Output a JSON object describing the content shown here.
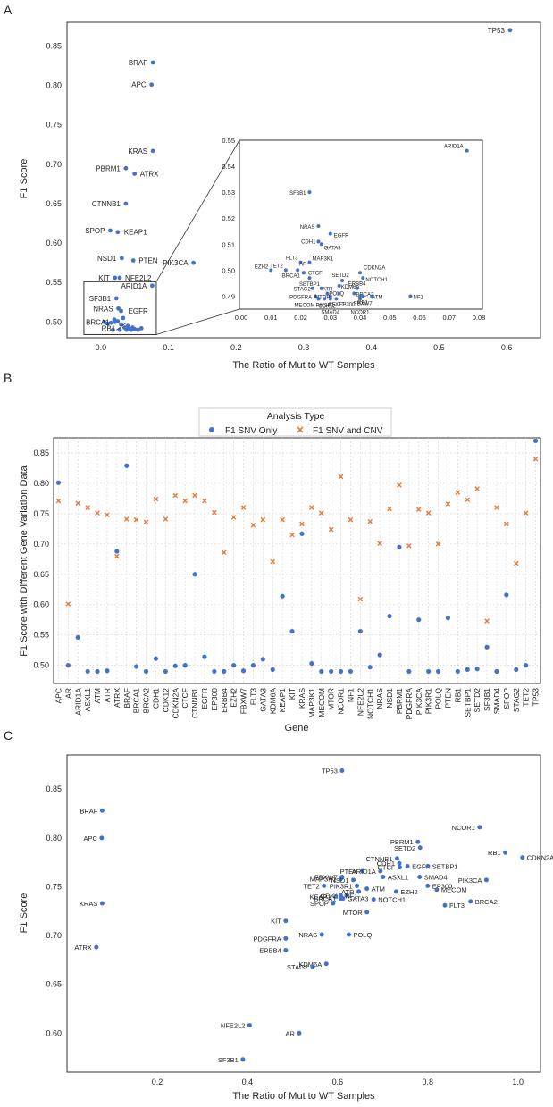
{
  "colors": {
    "blue": "#4472c4",
    "orange": "#e07b39",
    "grid": "#d9d9d9",
    "frame": "#333333"
  },
  "chart_data": [
    {
      "panel": "A",
      "type": "scatter",
      "xlabel": "The Ratio of Mut to WT Samples",
      "ylabel": "F1 Score",
      "xlim": [
        -0.05,
        0.65
      ],
      "ylim": [
        0.48,
        0.88
      ],
      "xticks": [
        "0.0",
        "0.1",
        "0.2",
        "0.3",
        "0.4",
        "0.5",
        "0.6"
      ],
      "yticks": [
        "0.50",
        "0.55",
        "0.60",
        "0.65",
        "0.70",
        "0.75",
        "0.80",
        "0.85"
      ],
      "grid": false,
      "points": [
        {
          "label": "TP53",
          "x": 0.605,
          "y": 0.87
        },
        {
          "label": "BRAF",
          "x": 0.077,
          "y": 0.829
        },
        {
          "label": "APC",
          "x": 0.075,
          "y": 0.801
        },
        {
          "label": "KRAS",
          "x": 0.077,
          "y": 0.717
        },
        {
          "label": "PBRM1",
          "x": 0.037,
          "y": 0.695
        },
        {
          "label": "ATRX",
          "x": 0.05,
          "y": 0.688
        },
        {
          "label": "CTNNB1",
          "x": 0.037,
          "y": 0.65
        },
        {
          "label": "SPOP",
          "x": 0.014,
          "y": 0.616
        },
        {
          "label": "KEAP1",
          "x": 0.025,
          "y": 0.614
        },
        {
          "label": "NSD1",
          "x": 0.031,
          "y": 0.581
        },
        {
          "label": "PTEN",
          "x": 0.048,
          "y": 0.578
        },
        {
          "label": "PIK3CA",
          "x": 0.137,
          "y": 0.575
        },
        {
          "label": "KIT",
          "x": 0.021,
          "y": 0.556
        },
        {
          "label": "NFE2L2",
          "x": 0.028,
          "y": 0.556
        },
        {
          "label": "ARID1A",
          "x": 0.076,
          "y": 0.546
        },
        {
          "label": "SF3B1",
          "x": 0.023,
          "y": 0.53
        },
        {
          "label": "NRAS",
          "x": 0.026,
          "y": 0.517
        },
        {
          "label": "EGFR",
          "x": 0.03,
          "y": 0.514
        },
        {
          "label": "BRCA1",
          "x": 0.021,
          "y": 0.5
        },
        {
          "label": "RB1",
          "x": 0.04,
          "y": 0.492
        }
      ],
      "cluster": [
        [
          0.005,
          0.5
        ],
        [
          0.01,
          0.498
        ],
        [
          0.015,
          0.499
        ],
        [
          0.02,
          0.503
        ],
        [
          0.025,
          0.501
        ],
        [
          0.03,
          0.497
        ],
        [
          0.035,
          0.493
        ],
        [
          0.04,
          0.495
        ],
        [
          0.045,
          0.49
        ],
        [
          0.05,
          0.491
        ],
        [
          0.055,
          0.49
        ],
        [
          0.06,
          0.492
        ],
        [
          0.028,
          0.49
        ],
        [
          0.033,
          0.505
        ],
        [
          0.042,
          0.491
        ],
        [
          0.018,
          0.49
        ],
        [
          0.038,
          0.49
        ],
        [
          0.047,
          0.493
        ]
      ],
      "inset": {
        "xlim": [
          0.0,
          0.08
        ],
        "ylim": [
          0.485,
          0.55
        ],
        "xticks": [
          "0.00",
          "0.01",
          "0.02",
          "0.03",
          "0.04",
          "0.05",
          "0.06",
          "0.07",
          "0.08"
        ],
        "yticks": [
          "0.49",
          "0.50",
          "0.51",
          "0.52",
          "0.53",
          "0.54",
          "0.55"
        ],
        "points": [
          {
            "label": "ARID1A",
            "x": 0.076,
            "y": 0.546
          },
          {
            "label": "SF3B1",
            "x": 0.023,
            "y": 0.53
          },
          {
            "label": "NRAS",
            "x": 0.026,
            "y": 0.517
          },
          {
            "label": "EGFR",
            "x": 0.03,
            "y": 0.514
          },
          {
            "label": "CDH1",
            "x": 0.026,
            "y": 0.511
          },
          {
            "label": "GATA3",
            "x": 0.027,
            "y": 0.51
          },
          {
            "label": "FLT3",
            "x": 0.02,
            "y": 0.503
          },
          {
            "label": "MAP3K1",
            "x": 0.023,
            "y": 0.503
          },
          {
            "label": "EZH2",
            "x": 0.01,
            "y": 0.5
          },
          {
            "label": "TET2",
            "x": 0.015,
            "y": 0.5
          },
          {
            "label": "AR",
            "x": 0.019,
            "y": 0.5
          },
          {
            "label": "CTCF",
            "x": 0.021,
            "y": 0.499
          },
          {
            "label": "CDKN2A",
            "x": 0.04,
            "y": 0.499
          },
          {
            "label": "BRCA1",
            "x": 0.021,
            "y": 0.499
          },
          {
            "label": "SETBP1",
            "x": 0.023,
            "y": 0.497
          },
          {
            "label": "NOTCH1",
            "x": 0.041,
            "y": 0.497
          },
          {
            "label": "SETD2",
            "x": 0.034,
            "y": 0.496
          },
          {
            "label": "STAG2",
            "x": 0.024,
            "y": 0.493
          },
          {
            "label": "ATR",
            "x": 0.027,
            "y": 0.493
          },
          {
            "label": "KDM6A",
            "x": 0.033,
            "y": 0.494
          },
          {
            "label": "ERBB4",
            "x": 0.039,
            "y": 0.493
          },
          {
            "label": "POLQ",
            "x": 0.029,
            "y": 0.491
          },
          {
            "label": "BRCA2",
            "x": 0.038,
            "y": 0.491
          },
          {
            "label": "PDGFRA",
            "x": 0.025,
            "y": 0.49
          },
          {
            "label": "MTOR",
            "x": 0.03,
            "y": 0.49
          },
          {
            "label": "CDK12",
            "x": 0.033,
            "y": 0.491
          },
          {
            "label": "ATM",
            "x": 0.044,
            "y": 0.49
          },
          {
            "label": "NF1",
            "x": 0.057,
            "y": 0.49
          },
          {
            "label": "FBXW7",
            "x": 0.041,
            "y": 0.49
          },
          {
            "label": "RB1",
            "x": 0.04,
            "y": 0.49
          },
          {
            "label": "MECOM",
            "x": 0.026,
            "y": 0.489
          },
          {
            "label": "PIK3R1",
            "x": 0.026,
            "y": 0.489
          },
          {
            "label": "ASXL1",
            "x": 0.028,
            "y": 0.489
          },
          {
            "label": "EP300",
            "x": 0.032,
            "y": 0.489
          },
          {
            "label": "NCOR1",
            "x": 0.04,
            "y": 0.489
          },
          {
            "label": "SMAD4",
            "x": 0.03,
            "y": 0.489
          }
        ]
      }
    },
    {
      "panel": "B",
      "type": "scatter",
      "title": "Analysis Type",
      "xlabel": "Gene",
      "ylabel": "F1 Score with Different Gene Variation Data",
      "ylim": [
        0.47,
        0.875
      ],
      "yticks": [
        "0.50",
        "0.55",
        "0.60",
        "0.65",
        "0.70",
        "0.75",
        "0.80",
        "0.85"
      ],
      "grid": true,
      "legend": "top-center",
      "categories": [
        "APC",
        "AR",
        "ARID1A",
        "ASXL1",
        "ATM",
        "ATR",
        "ATRX",
        "BRAF",
        "BRCA1",
        "BRCA2",
        "CDH1",
        "CDK12",
        "CDKN2A",
        "CTCF",
        "CTNNB1",
        "EGFR",
        "EP300",
        "ERBB4",
        "EZH2",
        "FBXW7",
        "FLT3",
        "GATA3",
        "KDM6A",
        "KEAP1",
        "KIT",
        "KRAS",
        "MAP3K1",
        "MECOM",
        "MTOR",
        "NCOR1",
        "NF1",
        "NFE2L2",
        "NOTCH1",
        "NRAS",
        "NSD1",
        "PBRM1",
        "PDGFRA",
        "PIK3CA",
        "PIK3R1",
        "POLQ",
        "PTEN",
        "RB1",
        "SETBP1",
        "SETD2",
        "SF3B1",
        "SMAD4",
        "SPOP",
        "STAG2",
        "TET2",
        "TP53"
      ],
      "series": [
        {
          "name": "F1 SNV Only",
          "marker": "circle",
          "values": [
            0.801,
            0.5,
            0.546,
            0.49,
            0.49,
            0.491,
            0.688,
            0.829,
            0.498,
            0.49,
            0.511,
            0.49,
            0.499,
            0.5,
            0.65,
            0.514,
            0.49,
            0.49,
            0.5,
            0.491,
            0.5,
            0.51,
            0.493,
            0.614,
            0.556,
            0.717,
            0.503,
            0.49,
            0.49,
            0.49,
            0.49,
            0.556,
            0.497,
            0.517,
            0.581,
            0.695,
            0.49,
            0.575,
            0.49,
            0.49,
            0.578,
            0.49,
            0.493,
            0.494,
            0.53,
            0.49,
            0.616,
            0.493,
            0.5,
            0.87
          ]
        },
        {
          "name": "F1 SNV and CNV",
          "marker": "x",
          "values": [
            0.771,
            0.601,
            0.767,
            0.76,
            0.751,
            0.748,
            0.68,
            0.741,
            0.74,
            0.736,
            0.774,
            0.741,
            0.78,
            0.771,
            0.78,
            0.771,
            0.752,
            0.686,
            0.744,
            0.76,
            0.731,
            0.74,
            0.671,
            0.74,
            0.715,
            0.733,
            0.76,
            0.751,
            0.724,
            0.811,
            0.74,
            0.609,
            0.737,
            0.701,
            0.758,
            0.797,
            0.697,
            0.757,
            0.751,
            0.7,
            0.766,
            0.785,
            0.773,
            0.791,
            0.573,
            0.76,
            0.733,
            0.668,
            0.751,
            0.84
          ]
        }
      ]
    },
    {
      "panel": "C",
      "type": "scatter",
      "xlabel": "The Ratio of Mut to WT Samples",
      "ylabel": "F1 Score",
      "xlim": [
        0.0,
        1.05
      ],
      "ylim": [
        0.56,
        0.885
      ],
      "xticks": [
        "0.2",
        "0.4",
        "0.6",
        "0.8",
        "1.0"
      ],
      "yticks": [
        "0.60",
        "0.65",
        "0.70",
        "0.75",
        "0.80",
        "0.85"
      ],
      "grid": false,
      "points": [
        {
          "label": "TP53",
          "x": 0.61,
          "y": 0.869
        },
        {
          "label": "BRAF",
          "x": 0.078,
          "y": 0.828
        },
        {
          "label": "NCOR1",
          "x": 0.915,
          "y": 0.811
        },
        {
          "label": "APC",
          "x": 0.077,
          "y": 0.8
        },
        {
          "label": "PBRM1",
          "x": 0.778,
          "y": 0.796
        },
        {
          "label": "SETD2",
          "x": 0.783,
          "y": 0.79
        },
        {
          "label": "RB1",
          "x": 0.972,
          "y": 0.785
        },
        {
          "label": "CDKN2A",
          "x": 1.01,
          "y": 0.78
        },
        {
          "label": "CTNNB1",
          "x": 0.732,
          "y": 0.779
        },
        {
          "label": "CDH1",
          "x": 0.737,
          "y": 0.774
        },
        {
          "label": "EGFR",
          "x": 0.755,
          "y": 0.771
        },
        {
          "label": "SETBP1",
          "x": 0.8,
          "y": 0.771
        },
        {
          "label": "CTCF",
          "x": 0.738,
          "y": 0.77
        },
        {
          "label": "PTEN",
          "x": 0.655,
          "y": 0.766
        },
        {
          "label": "ARID1A",
          "x": 0.695,
          "y": 0.766
        },
        {
          "label": "FBXW7",
          "x": 0.61,
          "y": 0.76
        },
        {
          "label": "MAP3K1",
          "x": 0.607,
          "y": 0.758
        },
        {
          "label": "ASXL1",
          "x": 0.701,
          "y": 0.76
        },
        {
          "label": "SMAD4",
          "x": 0.782,
          "y": 0.76
        },
        {
          "label": "PIK3CA",
          "x": 0.93,
          "y": 0.757
        },
        {
          "label": "NSD1",
          "x": 0.635,
          "y": 0.757
        },
        {
          "label": "PIK3R1",
          "x": 0.643,
          "y": 0.751
        },
        {
          "label": "EP300",
          "x": 0.8,
          "y": 0.751
        },
        {
          "label": "TET2",
          "x": 0.57,
          "y": 0.751
        },
        {
          "label": "ATM",
          "x": 0.665,
          "y": 0.748
        },
        {
          "label": "MECOM",
          "x": 0.82,
          "y": 0.747
        },
        {
          "label": "EZH2",
          "x": 0.73,
          "y": 0.745
        },
        {
          "label": "CDK12",
          "x": 0.62,
          "y": 0.741
        },
        {
          "label": "ATR",
          "x": 0.647,
          "y": 0.745
        },
        {
          "label": "KEAP1",
          "x": 0.596,
          "y": 0.74
        },
        {
          "label": "NF1",
          "x": 0.607,
          "y": 0.741
        },
        {
          "label": "BRCA1",
          "x": 0.607,
          "y": 0.738
        },
        {
          "label": "SPOP",
          "x": 0.59,
          "y": 0.733
        },
        {
          "label": "NOTCH1",
          "x": 0.68,
          "y": 0.737
        },
        {
          "label": "GATA3",
          "x": 0.612,
          "y": 0.738
        },
        {
          "label": "BRCA2",
          "x": 0.895,
          "y": 0.735
        },
        {
          "label": "KRAS",
          "x": 0.078,
          "y": 0.733
        },
        {
          "label": "FLT3",
          "x": 0.838,
          "y": 0.731
        },
        {
          "label": "MTOR",
          "x": 0.665,
          "y": 0.724
        },
        {
          "label": "KIT",
          "x": 0.485,
          "y": 0.715
        },
        {
          "label": "NRAS",
          "x": 0.565,
          "y": 0.701
        },
        {
          "label": "POLQ",
          "x": 0.625,
          "y": 0.701
        },
        {
          "label": "PDGFRA",
          "x": 0.485,
          "y": 0.697
        },
        {
          "label": "ATRX",
          "x": 0.065,
          "y": 0.688
        },
        {
          "label": "ERBB4",
          "x": 0.485,
          "y": 0.685
        },
        {
          "label": "KDM6A",
          "x": 0.575,
          "y": 0.671
        },
        {
          "label": "STAG2",
          "x": 0.545,
          "y": 0.668
        },
        {
          "label": "NFE2L2",
          "x": 0.405,
          "y": 0.608
        },
        {
          "label": "AR",
          "x": 0.515,
          "y": 0.6
        },
        {
          "label": "SF3B1",
          "x": 0.39,
          "y": 0.573
        }
      ]
    }
  ],
  "labels": {
    "panel_a": "A",
    "panel_b": "B",
    "panel_c": "C",
    "legend_title": "Analysis Type"
  }
}
